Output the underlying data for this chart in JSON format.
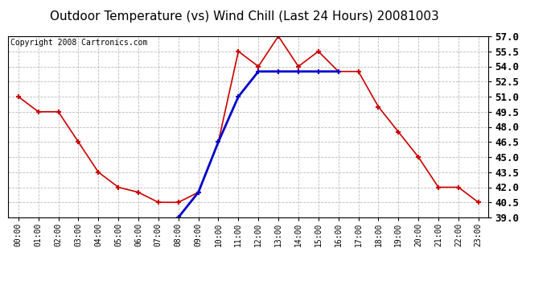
{
  "title": "Outdoor Temperature (vs) Wind Chill (Last 24 Hours) 20081003",
  "copyright": "Copyright 2008 Cartronics.com",
  "temp_hours": [
    0,
    1,
    2,
    3,
    4,
    5,
    6,
    7,
    8,
    9,
    10,
    11,
    12,
    13,
    14,
    15,
    16,
    17,
    18,
    19,
    20,
    21,
    22,
    23
  ],
  "temp_values": [
    51.0,
    49.5,
    49.5,
    46.5,
    43.5,
    42.0,
    41.5,
    40.5,
    40.5,
    41.5,
    46.5,
    55.5,
    54.0,
    57.0,
    54.0,
    55.5,
    53.5,
    53.5,
    50.0,
    47.5,
    45.0,
    42.0,
    42.0,
    40.5
  ],
  "wind_hours": [
    8,
    9,
    10,
    11,
    12,
    13,
    14,
    15,
    16
  ],
  "wind_values": [
    39.0,
    41.5,
    46.5,
    51.0,
    53.5,
    53.5,
    53.5,
    53.5,
    53.5
  ],
  "temp_color": "#cc0000",
  "wind_color": "#0000cc",
  "ylim": [
    39.0,
    57.0
  ],
  "yticks": [
    39.0,
    40.5,
    42.0,
    43.5,
    45.0,
    46.5,
    48.0,
    49.5,
    51.0,
    52.5,
    54.0,
    55.5,
    57.0
  ],
  "background_color": "#ffffff",
  "plot_bg_color": "#ffffff",
  "grid_color": "#bbbbbb",
  "title_fontsize": 11,
  "copyright_fontsize": 7,
  "ytick_fontsize": 9,
  "xtick_fontsize": 7
}
